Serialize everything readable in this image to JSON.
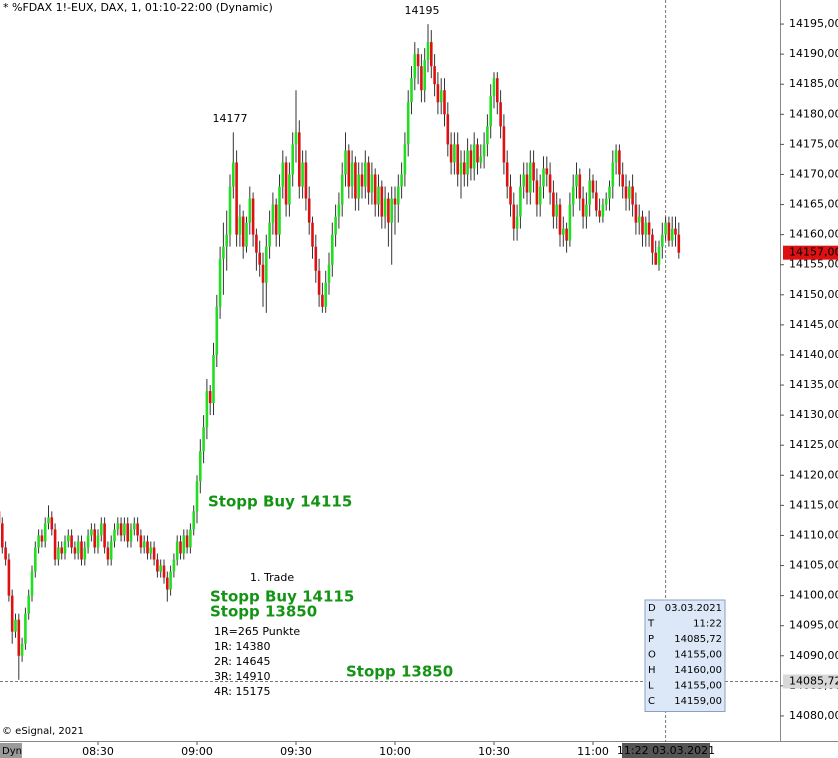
{
  "chart_data": {
    "type": "candlestick",
    "title": "* %FDAX 1!-EUX, DAX, 1, 01:10-22:00 (Dynamic)",
    "source": "© eSignal, 2021",
    "mode_label": "Dyn",
    "categories": [
      null,
      null,
      null,
      null,
      null,
      null,
      null,
      null,
      null,
      null,
      null,
      null,
      null,
      null,
      null,
      null,
      null,
      null,
      null,
      null,
      null,
      null,
      null,
      null,
      null,
      null,
      null,
      null,
      null,
      null,
      "08:30",
      null,
      null,
      null,
      null,
      null,
      null,
      null,
      null,
      null,
      null,
      null,
      null,
      null,
      null,
      null,
      null,
      null,
      null,
      null,
      null,
      null,
      null,
      null,
      null,
      null,
      null,
      null,
      null,
      null,
      "09:00",
      null,
      null,
      null,
      null,
      null,
      null,
      null,
      null,
      null,
      null,
      null,
      null,
      null,
      null,
      null,
      null,
      null,
      null,
      null,
      null,
      null,
      null,
      null,
      null,
      null,
      null,
      null,
      null,
      null,
      "09:30",
      null,
      null,
      null,
      null,
      null,
      null,
      null,
      null,
      null,
      null,
      null,
      null,
      null,
      null,
      null,
      null,
      null,
      null,
      null,
      null,
      null,
      null,
      null,
      null,
      null,
      null,
      null,
      null,
      null,
      "10:00",
      null,
      null,
      null,
      null,
      null,
      null,
      null,
      null,
      null,
      null,
      null,
      null,
      null,
      null,
      null,
      null,
      null,
      null,
      null,
      null,
      null,
      null,
      null,
      null,
      null,
      null,
      null,
      null,
      null,
      "10:30",
      null,
      null,
      null,
      null,
      null,
      null,
      null,
      null,
      null,
      null,
      null,
      null,
      null,
      null,
      null,
      null,
      null,
      null,
      null,
      null,
      null,
      null,
      null,
      null,
      null,
      null,
      null,
      null,
      null,
      "11:00",
      null,
      null,
      null,
      null,
      null,
      null,
      null,
      null,
      null,
      null,
      null,
      null,
      null,
      null,
      null,
      null,
      null,
      null,
      null,
      null,
      null,
      null,
      null,
      null,
      null,
      null
    ],
    "open": [
      14114,
      14112,
      14108,
      14106,
      14100,
      14094,
      14096,
      14090,
      14092,
      14097,
      14100,
      14104,
      14108,
      14110,
      14109,
      14112,
      14113,
      14111,
      14106,
      14108,
      14107,
      14109,
      14110,
      14108,
      14107,
      14109,
      14106,
      14108,
      14110,
      14111,
      14108,
      14110,
      14112,
      14108,
      14106,
      14109,
      14111,
      14112,
      14110,
      14112,
      14109,
      14111,
      14112,
      14110,
      14108,
      14109,
      14107,
      14108,
      14106,
      14104,
      14105,
      14103,
      14101,
      14104,
      14106,
      14109,
      14107,
      14110,
      14108,
      14111,
      14114,
      14119,
      14124,
      14128,
      14134,
      14132,
      14140,
      14148,
      14156,
      14158,
      14160,
      14168,
      14172,
      14160,
      14163,
      14158,
      14162,
      14166,
      14160,
      14157,
      14155,
      14152,
      14158,
      14162,
      14165,
      14160,
      14168,
      14172,
      14165,
      14170,
      14175,
      14177,
      14168,
      14172,
      14166,
      14162,
      14158,
      14154,
      14150,
      14148,
      14152,
      14155,
      14160,
      14163,
      14165,
      14170,
      14174,
      14168,
      14172,
      14166,
      14170,
      14168,
      14172,
      14167,
      14170,
      14165,
      14168,
      14163,
      14166,
      14162,
      14166,
      14165,
      14168,
      14170,
      14175,
      14182,
      14186,
      14190,
      14188,
      14184,
      14189,
      14192,
      14188,
      14185,
      14182,
      14184,
      14180,
      14175,
      14172,
      14175,
      14170,
      14172,
      14170,
      14174,
      14171,
      14175,
      14172,
      14173,
      14175,
      14178,
      14183,
      14186,
      14182,
      14178,
      14172,
      14168,
      14165,
      14161,
      14163,
      14168,
      14170,
      14167,
      14172,
      14169,
      14165,
      14168,
      14171,
      14170,
      14167,
      14163,
      14165,
      14160,
      14161,
      14159,
      14165,
      14168,
      14170,
      14166,
      14163,
      14165,
      14169,
      14167,
      14164,
      14163,
      14165,
      14166,
      14168,
      14172,
      14174,
      14170,
      14168,
      14166,
      14168,
      14165,
      14162,
      14163,
      14160,
      14162,
      14160,
      14157,
      14155,
      14158,
      14160,
      14162,
      14159,
      14161,
      14160
    ],
    "high": [
      14116,
      14113,
      14109,
      14107,
      14101,
      14097,
      14097,
      14093,
      14098,
      14101,
      14105,
      14109,
      14111,
      14111,
      14113,
      14115,
      14114,
      14112,
      14109,
      14109,
      14110,
      14111,
      14111,
      14109,
      14110,
      14110,
      14109,
      14111,
      14112,
      14112,
      14111,
      14113,
      14113,
      14109,
      14110,
      14112,
      14113,
      14113,
      14113,
      14113,
      14112,
      14113,
      14113,
      14111,
      14110,
      14110,
      14109,
      14109,
      14107,
      14106,
      14106,
      14104,
      14105,
      14107,
      14110,
      14110,
      14111,
      14111,
      14112,
      14115,
      14120,
      14126,
      14130,
      14136,
      14135,
      14142,
      14150,
      14158,
      14162,
      14164,
      14170,
      14177,
      14174,
      14165,
      14164,
      14163,
      14168,
      14167,
      14161,
      14159,
      14157,
      14160,
      14164,
      14167,
      14166,
      14170,
      14174,
      14173,
      14172,
      14177,
      14184,
      14179,
      14174,
      14174,
      14168,
      14163,
      14160,
      14156,
      14152,
      14154,
      14157,
      14162,
      14165,
      14167,
      14172,
      14177,
      14175,
      14174,
      14173,
      14172,
      14172,
      14174,
      14173,
      14172,
      14171,
      14170,
      14169,
      14168,
      14167,
      14168,
      14168,
      14170,
      14172,
      14177,
      14184,
      14188,
      14192,
      14191,
      14190,
      14191,
      14195,
      14194,
      14190,
      14187,
      14186,
      14186,
      14182,
      14177,
      14177,
      14177,
      14174,
      14174,
      14176,
      14175,
      14177,
      14176,
      14175,
      14177,
      14180,
      14185,
      14187,
      14187,
      14184,
      14180,
      14174,
      14170,
      14167,
      14165,
      14170,
      14172,
      14172,
      14174,
      14174,
      14171,
      14170,
      14173,
      14173,
      14172,
      14169,
      14167,
      14166,
      14163,
      14162,
      14167,
      14170,
      14172,
      14171,
      14168,
      14167,
      14171,
      14170,
      14169,
      14166,
      14166,
      14167,
      14169,
      14174,
      14175,
      14175,
      14172,
      14170,
      14169,
      14170,
      14167,
      14165,
      14164,
      14163,
      14164,
      14161,
      14159,
      14159,
      14162,
      14163,
      14163,
      14163,
      14163,
      14162
    ],
    "low": [
      14111,
      14107,
      14105,
      14099,
      14092,
      14093,
      14086,
      14089,
      14091,
      14096,
      14099,
      14103,
      14107,
      14108,
      14108,
      14111,
      14110,
      14105,
      14105,
      14106,
      14106,
      14108,
      14107,
      14106,
      14106,
      14105,
      14105,
      14107,
      14109,
      14107,
      14107,
      14109,
      14107,
      14105,
      14105,
      14108,
      14110,
      14109,
      14109,
      14108,
      14108,
      14110,
      14109,
      14107,
      14107,
      14106,
      14106,
      14105,
      14103,
      14103,
      14102,
      14099,
      14100,
      14103,
      14105,
      14106,
      14106,
      14107,
      14107,
      14110,
      14112,
      14117,
      14122,
      14126,
      14130,
      14130,
      14138,
      14146,
      14150,
      14154,
      14158,
      14166,
      14158,
      14158,
      14156,
      14157,
      14160,
      14158,
      14154,
      14153,
      14148,
      14147,
      14156,
      14160,
      14158,
      14158,
      14166,
      14163,
      14163,
      14168,
      14172,
      14166,
      14166,
      14164,
      14160,
      14156,
      14152,
      14148,
      14147,
      14147,
      14150,
      14153,
      14158,
      14161,
      14163,
      14168,
      14166,
      14166,
      14164,
      14164,
      14166,
      14166,
      14165,
      14165,
      14163,
      14163,
      14161,
      14161,
      14158,
      14155,
      14160,
      14162,
      14166,
      14168,
      14173,
      14180,
      14184,
      14185,
      14182,
      14182,
      14187,
      14186,
      14183,
      14180,
      14180,
      14178,
      14173,
      14170,
      14170,
      14168,
      14166,
      14168,
      14168,
      14169,
      14169,
      14170,
      14171,
      14171,
      14173,
      14176,
      14181,
      14180,
      14176,
      14170,
      14166,
      14163,
      14159,
      14159,
      14161,
      14166,
      14165,
      14165,
      14167,
      14163,
      14163,
      14166,
      14168,
      14165,
      14161,
      14161,
      14158,
      14158,
      14157,
      14158,
      14163,
      14166,
      14164,
      14161,
      14161,
      14163,
      14166,
      14163,
      14162,
      14162,
      14164,
      14164,
      14166,
      14170,
      14168,
      14166,
      14164,
      14164,
      14163,
      14160,
      14160,
      14158,
      14158,
      14158,
      14155,
      14155,
      14154,
      14156,
      14159,
      14158,
      14158,
      14158,
      14156
    ],
    "close": [
      14112,
      14108,
      14106,
      14100,
      14094,
      14096,
      14090,
      14092,
      14097,
      14100,
      14104,
      14108,
      14110,
      14109,
      14112,
      14113,
      14111,
      14106,
      14108,
      14107,
      14109,
      14110,
      14108,
      14107,
      14109,
      14106,
      14108,
      14110,
      14111,
      14108,
      14110,
      14112,
      14108,
      14106,
      14109,
      14111,
      14112,
      14110,
      14112,
      14109,
      14111,
      14112,
      14110,
      14108,
      14109,
      14107,
      14108,
      14106,
      14104,
      14105,
      14103,
      14101,
      14104,
      14106,
      14109,
      14107,
      14110,
      14108,
      14111,
      14114,
      14119,
      14124,
      14128,
      14134,
      14132,
      14140,
      14148,
      14156,
      14158,
      14160,
      14168,
      14172,
      14160,
      14163,
      14158,
      14162,
      14166,
      14160,
      14157,
      14155,
      14152,
      14158,
      14162,
      14165,
      14160,
      14168,
      14172,
      14165,
      14170,
      14175,
      14177,
      14168,
      14172,
      14166,
      14162,
      14158,
      14154,
      14150,
      14148,
      14152,
      14155,
      14160,
      14163,
      14165,
      14170,
      14174,
      14168,
      14172,
      14166,
      14170,
      14168,
      14172,
      14167,
      14170,
      14165,
      14168,
      14163,
      14166,
      14162,
      14166,
      14165,
      14168,
      14170,
      14175,
      14182,
      14186,
      14190,
      14188,
      14184,
      14189,
      14192,
      14188,
      14185,
      14182,
      14184,
      14180,
      14175,
      14172,
      14175,
      14170,
      14172,
      14170,
      14174,
      14171,
      14175,
      14172,
      14173,
      14175,
      14178,
      14183,
      14186,
      14182,
      14178,
      14172,
      14168,
      14165,
      14161,
      14163,
      14168,
      14170,
      14167,
      14172,
      14169,
      14165,
      14168,
      14171,
      14170,
      14167,
      14163,
      14165,
      14160,
      14161,
      14159,
      14165,
      14168,
      14170,
      14166,
      14163,
      14165,
      14169,
      14167,
      14164,
      14163,
      14165,
      14166,
      14168,
      14172,
      14174,
      14170,
      14168,
      14166,
      14168,
      14165,
      14162,
      14163,
      14160,
      14162,
      14160,
      14157,
      14155,
      14158,
      14160,
      14162,
      14159,
      14161,
      14160,
      14157
    ],
    "up_color": "#22dd22",
    "down_color": "#dd1111",
    "wick_color": "#333333",
    "ylim": [
      14076,
      14199
    ],
    "yticks": [
      {
        "value": 14080,
        "label": "14080,00"
      },
      {
        "value": 14085,
        "label": "14085,00"
      },
      {
        "value": 14090,
        "label": "14090,00"
      },
      {
        "value": 14095,
        "label": "14095,00"
      },
      {
        "value": 14100,
        "label": "14100,00"
      },
      {
        "value": 14105,
        "label": "14105,00"
      },
      {
        "value": 14110,
        "label": "14110,00"
      },
      {
        "value": 14115,
        "label": "14115,00"
      },
      {
        "value": 14120,
        "label": "14120,00"
      },
      {
        "value": 14125,
        "label": "14125,00"
      },
      {
        "value": 14130,
        "label": "14130,00"
      },
      {
        "value": 14135,
        "label": "14135,00"
      },
      {
        "value": 14140,
        "label": "14140,00"
      },
      {
        "value": 14145,
        "label": "14145,00"
      },
      {
        "value": 14150,
        "label": "14150,00"
      },
      {
        "value": 14155,
        "label": "14155,00"
      },
      {
        "value": 14160,
        "label": "14160,00"
      },
      {
        "value": 14165,
        "label": "14165,00"
      },
      {
        "value": 14170,
        "label": "14170,00"
      },
      {
        "value": 14175,
        "label": "14175,00"
      },
      {
        "value": 14180,
        "label": "14180,00"
      },
      {
        "value": 14185,
        "label": "14185,00"
      },
      {
        "value": 14190,
        "label": "14190,00"
      },
      {
        "value": 14195,
        "label": "14195,00"
      }
    ],
    "grid": false,
    "last_price": {
      "value": 14157,
      "label": "14157,00",
      "color": "#dd1111"
    },
    "crosshair": {
      "value": 14085.72,
      "label": "14085,72",
      "time_label": "11:22 03.03.2021"
    },
    "annotations": [
      "14195",
      "14177",
      "Stopp Buy 14115",
      "1. Trade",
      "Stopp Buy 14115",
      "Stopp 13850",
      "1R=265 Punkte",
      "1R: 14380",
      "2R: 14645",
      "3R: 14910",
      "4R: 15175",
      "Stopp 13850"
    ],
    "info_box": [
      [
        "D",
        "03.03.2021"
      ],
      [
        "T",
        "11:22"
      ],
      [
        "P",
        "14085,72"
      ],
      [
        "O",
        "14155,00"
      ],
      [
        "H",
        "14160,00"
      ],
      [
        "L",
        "14155,00"
      ],
      [
        "C",
        "14159,00"
      ]
    ]
  }
}
